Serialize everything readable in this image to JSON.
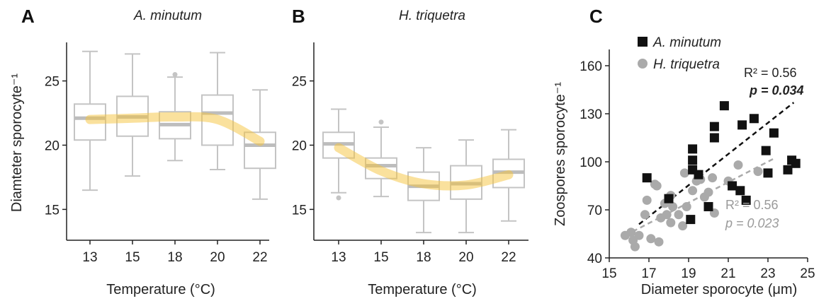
{
  "chart_data": [
    {
      "panel": "A",
      "type": "box",
      "title": "A. minutum",
      "xlabel": "Temperature (°C)",
      "ylabel": "Diamteter sporocyte⁻¹",
      "categories": [
        "13",
        "15",
        "18",
        "20",
        "22"
      ],
      "ylim": [
        12.6,
        28.0
      ],
      "yticks": [
        15,
        20,
        25
      ],
      "boxes": [
        {
          "min": 16.5,
          "q1": 20.4,
          "median": 22.1,
          "q3": 23.2,
          "max": 27.3,
          "outliers": []
        },
        {
          "min": 17.6,
          "q1": 20.7,
          "median": 22.2,
          "q3": 23.8,
          "max": 27.1,
          "outliers": []
        },
        {
          "min": 18.8,
          "q1": 20.5,
          "median": 21.6,
          "q3": 22.6,
          "max": 25.3,
          "outliers": [
            25.5
          ]
        },
        {
          "min": 18.1,
          "q1": 20.0,
          "median": 22.5,
          "q3": 23.9,
          "max": 27.2,
          "outliers": []
        },
        {
          "min": 15.8,
          "q1": 18.2,
          "median": 20.0,
          "q3": 21.0,
          "max": 24.3,
          "outliers": []
        }
      ],
      "trend": [
        22.0,
        22.1,
        22.2,
        22.0,
        20.3
      ]
    },
    {
      "panel": "B",
      "type": "box",
      "title": "H. triquetra",
      "xlabel": "Temperature (°C)",
      "ylabel": "",
      "categories": [
        "13",
        "15",
        "18",
        "20",
        "22"
      ],
      "ylim": [
        12.6,
        28.0
      ],
      "yticks": [
        15,
        20,
        25
      ],
      "boxes": [
        {
          "min": 16.3,
          "q1": 19.0,
          "median": 20.1,
          "q3": 21.0,
          "max": 22.8,
          "outliers": [
            15.9
          ]
        },
        {
          "min": 16.0,
          "q1": 17.4,
          "median": 18.4,
          "q3": 19.0,
          "max": 21.4,
          "outliers": [
            21.8
          ]
        },
        {
          "min": 13.2,
          "q1": 15.7,
          "median": 16.8,
          "q3": 17.9,
          "max": 19.8,
          "outliers": []
        },
        {
          "min": 13.2,
          "q1": 15.8,
          "median": 17.0,
          "q3": 18.4,
          "max": 20.4,
          "outliers": []
        },
        {
          "min": 14.1,
          "q1": 16.7,
          "median": 17.9,
          "q3": 18.9,
          "max": 21.2,
          "outliers": []
        }
      ],
      "trend": [
        19.8,
        18.0,
        17.0,
        16.9,
        17.7
      ]
    },
    {
      "panel": "C",
      "type": "scatter",
      "xlabel": "Diameter sporocyte (μm)",
      "ylabel": "Zoospores sporocyte⁻¹",
      "xlim": [
        15,
        25
      ],
      "ylim": [
        40,
        160
      ],
      "xticks": [
        15,
        17,
        19,
        21,
        23,
        25
      ],
      "yticks": [
        40,
        70,
        100,
        130,
        160
      ],
      "legend_position": "top-left",
      "series": [
        {
          "name": "A. minutum",
          "color": "#111111",
          "marker": "square",
          "r2_text": "R² = 0.56",
          "p_text": "p = 0.034",
          "fit": {
            "x": [
              16.5,
              24.3
            ],
            "y": [
              61,
              137
            ]
          },
          "points": [
            [
              16.9,
              90
            ],
            [
              18.0,
              77
            ],
            [
              19.1,
              64
            ],
            [
              19.2,
              108
            ],
            [
              19.2,
              101
            ],
            [
              19.2,
              95
            ],
            [
              19.5,
              92
            ],
            [
              20.0,
              72
            ],
            [
              20.3,
              122
            ],
            [
              20.3,
              115
            ],
            [
              20.8,
              135
            ],
            [
              21.2,
              85
            ],
            [
              21.6,
              82
            ],
            [
              21.7,
              123
            ],
            [
              21.9,
              76
            ],
            [
              22.3,
              127
            ],
            [
              22.9,
              107
            ],
            [
              23.0,
              93
            ],
            [
              23.3,
              118
            ],
            [
              24.0,
              95
            ],
            [
              24.2,
              101
            ],
            [
              24.4,
              99
            ]
          ]
        },
        {
          "name": "H. triquetra",
          "color": "#aaaaaa",
          "marker": "circle",
          "r2_text": "R² = 0.56",
          "p_text": "p = 0.023",
          "fit": {
            "x": [
              15.8,
              23.3
            ],
            "y": [
              54,
              102
            ]
          },
          "points": [
            [
              15.8,
              54
            ],
            [
              16.1,
              56
            ],
            [
              16.2,
              51
            ],
            [
              16.3,
              47
            ],
            [
              16.5,
              54
            ],
            [
              16.8,
              67
            ],
            [
              16.9,
              76
            ],
            [
              17.1,
              52
            ],
            [
              17.3,
              86
            ],
            [
              17.4,
              85
            ],
            [
              17.5,
              50
            ],
            [
              17.6,
              65
            ],
            [
              17.8,
              74
            ],
            [
              17.9,
              67
            ],
            [
              18.1,
              62
            ],
            [
              18.1,
              79
            ],
            [
              18.2,
              72
            ],
            [
              18.5,
              67
            ],
            [
              18.7,
              60
            ],
            [
              18.8,
              93
            ],
            [
              18.9,
              72
            ],
            [
              19.2,
              82
            ],
            [
              19.4,
              88
            ],
            [
              19.6,
              89
            ],
            [
              19.8,
              78
            ],
            [
              20.0,
              81
            ],
            [
              20.2,
              90
            ],
            [
              20.3,
              68
            ],
            [
              21.0,
              88
            ],
            [
              21.5,
              98
            ],
            [
              22.5,
              94
            ]
          ]
        }
      ]
    }
  ]
}
